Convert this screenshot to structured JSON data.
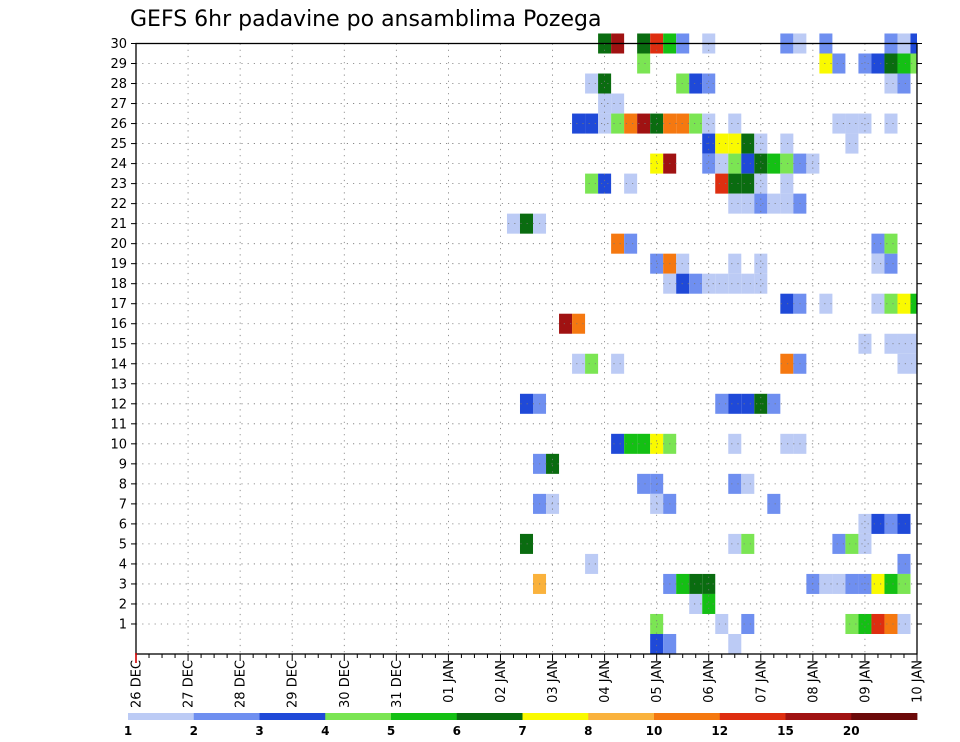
{
  "chart_data": {
    "type": "heatmap",
    "title": "GEFS 6hr padavine po ansamblima Pozega",
    "xlabel": "",
    "ylabel": "",
    "x_tick_labels": [
      "26 DEC",
      "27 DEC",
      "28 DEC",
      "29 DEC",
      "30 DEC",
      "31 DEC",
      "01 JAN",
      "02 JAN",
      "03 JAN",
      "04 JAN",
      "05 JAN",
      "06 JAN",
      "07 JAN",
      "08 JAN",
      "09 JAN",
      "10 JAN"
    ],
    "x_unit": "6-hour steps from 26 DEC 00Z",
    "x_range": [
      0,
      60
    ],
    "y_tick_labels": [
      1,
      2,
      3,
      4,
      5,
      6,
      7,
      8,
      9,
      10,
      11,
      12,
      13,
      14,
      15,
      16,
      17,
      18,
      19,
      20,
      21,
      22,
      23,
      24,
      25,
      26,
      27,
      28,
      29,
      30
    ],
    "y_range": [
      0,
      30
    ],
    "grid": true,
    "colorbar": {
      "labels": [
        "1",
        "2",
        "3",
        "4",
        "5",
        "6",
        "7",
        "8",
        "10",
        "12",
        "15",
        "20"
      ],
      "colors": [
        "#bccbf5",
        "#6f8ff0",
        "#1f49d8",
        "#7be553",
        "#14c014",
        "#0a6c10",
        "#fafa00",
        "#fab23c",
        "#f57810",
        "#de2e10",
        "#a01212",
        "#6c0a0a"
      ]
    },
    "cells": [
      {
        "y": 30,
        "s": [
          [
            36,
            6
          ],
          [
            37,
            11
          ],
          [
            39,
            6
          ],
          [
            40,
            10
          ],
          [
            41,
            5
          ],
          [
            42,
            2
          ],
          [
            44,
            1
          ],
          [
            50,
            2
          ],
          [
            51,
            1
          ],
          [
            53,
            2
          ],
          [
            58,
            2
          ],
          [
            59,
            1
          ],
          [
            60,
            3
          ]
        ]
      },
      {
        "y": 29,
        "s": [
          [
            39,
            4
          ],
          [
            53,
            7
          ],
          [
            54,
            2
          ],
          [
            56,
            2
          ],
          [
            57,
            3
          ],
          [
            58,
            6
          ],
          [
            59,
            5
          ],
          [
            60,
            4
          ]
        ]
      },
      {
        "y": 28,
        "s": [
          [
            35,
            1
          ],
          [
            36,
            6
          ],
          [
            42,
            4
          ],
          [
            43,
            3
          ],
          [
            44,
            2
          ],
          [
            58,
            1
          ],
          [
            59,
            2
          ]
        ]
      },
      {
        "y": 27,
        "s": [
          [
            36,
            1
          ],
          [
            37,
            1
          ]
        ]
      },
      {
        "y": 26,
        "s": [
          [
            34,
            3
          ],
          [
            35,
            3
          ],
          [
            36,
            1
          ],
          [
            37,
            4
          ],
          [
            38,
            9
          ],
          [
            39,
            11
          ],
          [
            40,
            6
          ],
          [
            41,
            9
          ],
          [
            42,
            9
          ],
          [
            43,
            4
          ],
          [
            44,
            1
          ],
          [
            46,
            1
          ],
          [
            54,
            1
          ],
          [
            55,
            1
          ],
          [
            56,
            1
          ],
          [
            58,
            1
          ]
        ]
      },
      {
        "y": 25,
        "s": [
          [
            44,
            3
          ],
          [
            45,
            7
          ],
          [
            46,
            7
          ],
          [
            47,
            6
          ],
          [
            48,
            1
          ],
          [
            50,
            1
          ],
          [
            55,
            1
          ]
        ]
      },
      {
        "y": 24,
        "s": [
          [
            40,
            7
          ],
          [
            41,
            11
          ],
          [
            44,
            2
          ],
          [
            45,
            1
          ],
          [
            46,
            4
          ],
          [
            47,
            3
          ],
          [
            48,
            6
          ],
          [
            49,
            5
          ],
          [
            50,
            4
          ],
          [
            51,
            2
          ],
          [
            52,
            1
          ]
        ]
      },
      {
        "y": 23,
        "s": [
          [
            35,
            4
          ],
          [
            36,
            3
          ],
          [
            38,
            1
          ],
          [
            45,
            10
          ],
          [
            46,
            6
          ],
          [
            47,
            6
          ],
          [
            48,
            1
          ],
          [
            50,
            1
          ]
        ]
      },
      {
        "y": 22,
        "s": [
          [
            46,
            1
          ],
          [
            47,
            1
          ],
          [
            48,
            2
          ],
          [
            49,
            1
          ],
          [
            50,
            1
          ],
          [
            51,
            2
          ]
        ]
      },
      {
        "y": 21,
        "s": [
          [
            29,
            1
          ],
          [
            30,
            6
          ],
          [
            31,
            1
          ]
        ]
      },
      {
        "y": 20,
        "s": [
          [
            37,
            9
          ],
          [
            38,
            2
          ],
          [
            57,
            2
          ],
          [
            58,
            4
          ]
        ]
      },
      {
        "y": 19,
        "s": [
          [
            40,
            2
          ],
          [
            41,
            9
          ],
          [
            42,
            1
          ],
          [
            46,
            1
          ],
          [
            48,
            1
          ],
          [
            57,
            1
          ],
          [
            58,
            2
          ]
        ]
      },
      {
        "y": 18,
        "s": [
          [
            41,
            1
          ],
          [
            42,
            3
          ],
          [
            43,
            2
          ],
          [
            44,
            1
          ],
          [
            45,
            1
          ],
          [
            46,
            1
          ],
          [
            47,
            1
          ],
          [
            48,
            1
          ]
        ]
      },
      {
        "y": 17,
        "s": [
          [
            50,
            3
          ],
          [
            51,
            2
          ],
          [
            53,
            1
          ],
          [
            57,
            1
          ],
          [
            58,
            4
          ],
          [
            59,
            7
          ],
          [
            60,
            5
          ]
        ]
      },
      {
        "y": 16,
        "s": [
          [
            33,
            11
          ],
          [
            34,
            9
          ]
        ]
      },
      {
        "y": 15,
        "s": [
          [
            56,
            1
          ],
          [
            58,
            1
          ],
          [
            59,
            1
          ],
          [
            60,
            1
          ]
        ]
      },
      {
        "y": 14,
        "s": [
          [
            34,
            1
          ],
          [
            35,
            4
          ],
          [
            37,
            1
          ],
          [
            50,
            9
          ],
          [
            51,
            2
          ],
          [
            59,
            1
          ],
          [
            60,
            1
          ]
        ]
      },
      {
        "y": 12,
        "s": [
          [
            30,
            3
          ],
          [
            31,
            2
          ],
          [
            45,
            2
          ],
          [
            46,
            3
          ],
          [
            47,
            3
          ],
          [
            48,
            6
          ],
          [
            49,
            2
          ]
        ]
      },
      {
        "y": 10,
        "s": [
          [
            37,
            3
          ],
          [
            38,
            5
          ],
          [
            39,
            5
          ],
          [
            40,
            7
          ],
          [
            41,
            4
          ],
          [
            46,
            1
          ],
          [
            50,
            1
          ],
          [
            51,
            1
          ]
        ]
      },
      {
        "y": 9,
        "s": [
          [
            31,
            2
          ],
          [
            32,
            6
          ]
        ]
      },
      {
        "y": 8,
        "s": [
          [
            39,
            2
          ],
          [
            40,
            2
          ],
          [
            46,
            2
          ],
          [
            47,
            1
          ]
        ]
      },
      {
        "y": 7,
        "s": [
          [
            31,
            2
          ],
          [
            32,
            1
          ],
          [
            40,
            1
          ],
          [
            41,
            2
          ],
          [
            49,
            2
          ]
        ]
      },
      {
        "y": 6,
        "s": [
          [
            56,
            1
          ],
          [
            57,
            3
          ],
          [
            58,
            2
          ],
          [
            59,
            3
          ]
        ]
      },
      {
        "y": 5,
        "s": [
          [
            30,
            6
          ],
          [
            46,
            1
          ],
          [
            47,
            4
          ],
          [
            54,
            2
          ],
          [
            55,
            4
          ],
          [
            56,
            1
          ]
        ]
      },
      {
        "y": 4,
        "s": [
          [
            35,
            1
          ],
          [
            59,
            2
          ]
        ]
      },
      {
        "y": 3,
        "s": [
          [
            31,
            8
          ],
          [
            41,
            2
          ],
          [
            42,
            5
          ],
          [
            43,
            6
          ],
          [
            44,
            6
          ],
          [
            52,
            2
          ],
          [
            53,
            1
          ],
          [
            54,
            1
          ],
          [
            55,
            2
          ],
          [
            56,
            2
          ],
          [
            57,
            7
          ],
          [
            58,
            5
          ],
          [
            59,
            4
          ]
        ]
      },
      {
        "y": 2,
        "s": [
          [
            43,
            1
          ],
          [
            44,
            5
          ]
        ]
      },
      {
        "y": 1,
        "s": [
          [
            40,
            4
          ],
          [
            45,
            1
          ],
          [
            47,
            2
          ],
          [
            55,
            4
          ],
          [
            56,
            5
          ],
          [
            57,
            10
          ],
          [
            58,
            9
          ],
          [
            59,
            1
          ]
        ]
      },
      {
        "y": 0,
        "s": [
          [
            40,
            3
          ],
          [
            41,
            2
          ],
          [
            46,
            1
          ]
        ]
      }
    ]
  }
}
